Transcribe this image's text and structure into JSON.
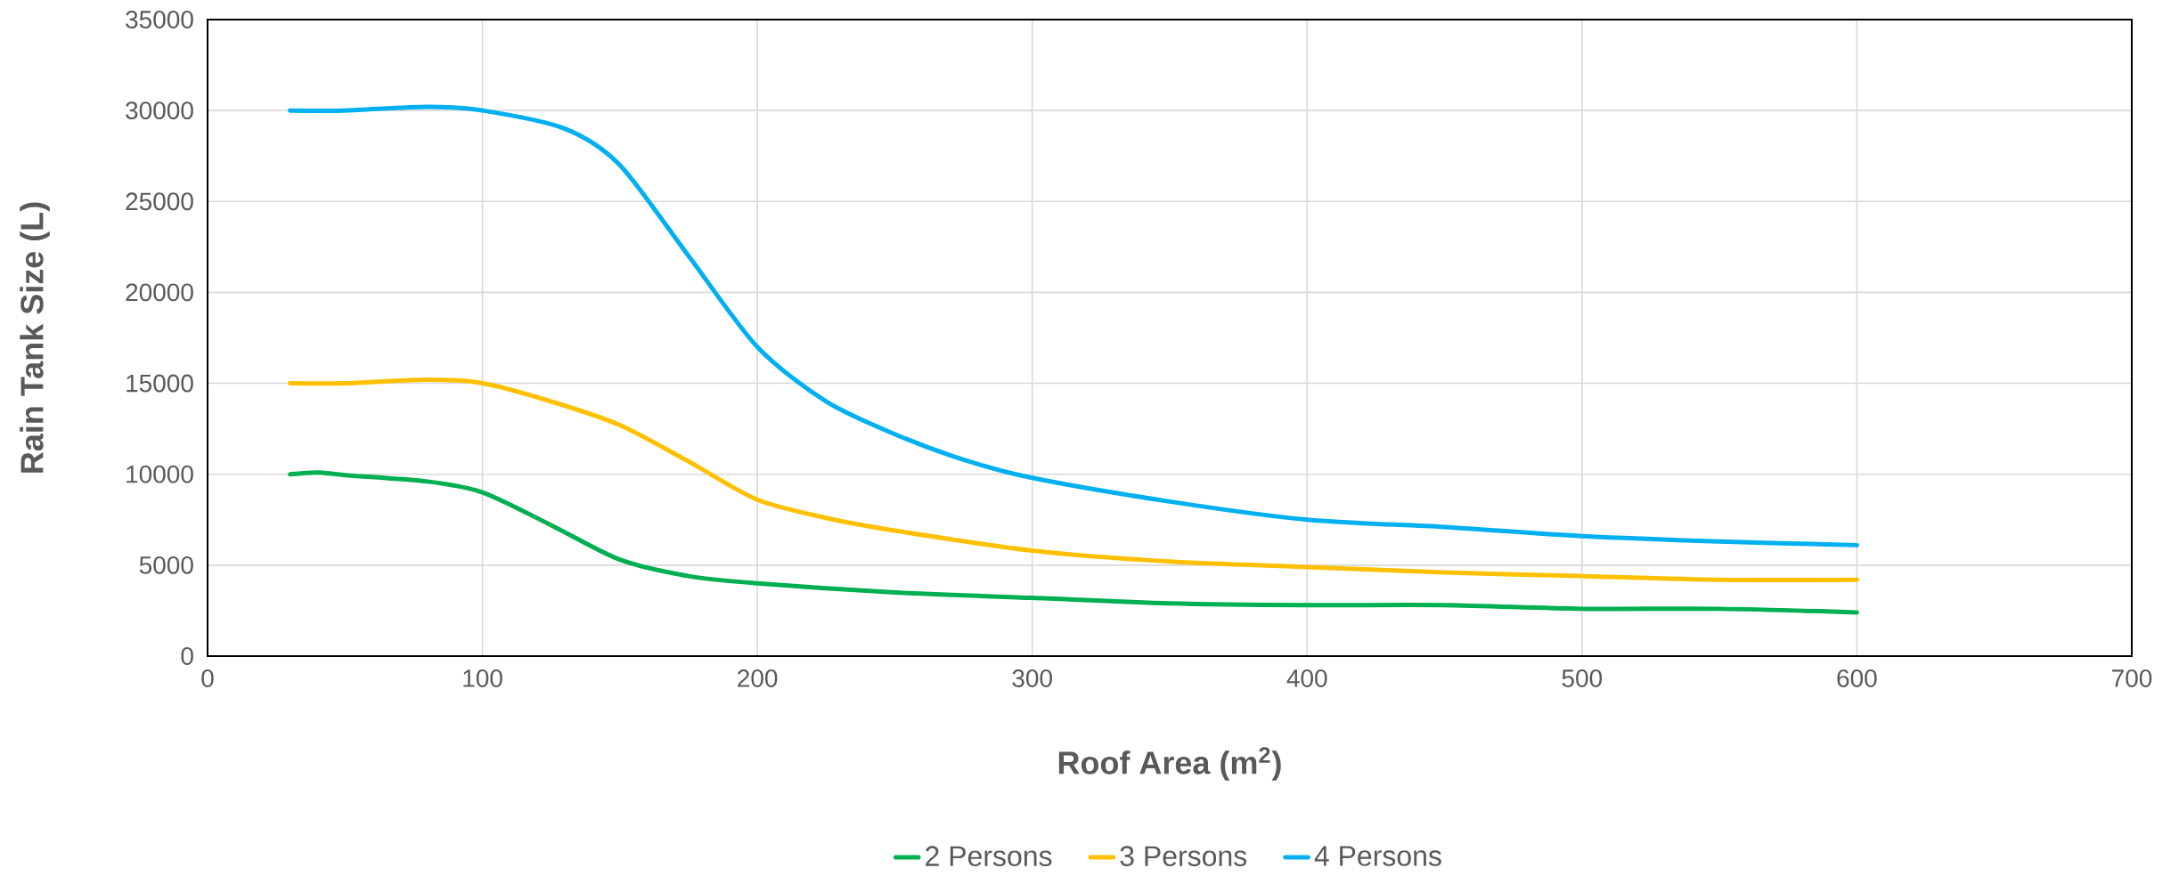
{
  "chart_data": {
    "type": "line",
    "xlabel": "Roof Area (m$^{2}$)",
    "ylabel": "Rain Tank Size (L)",
    "xlim": [
      0,
      700
    ],
    "xticks": [
      0,
      100,
      200,
      300,
      400,
      500,
      600,
      700
    ],
    "ylim": [
      0,
      35000
    ],
    "yticks": [
      0,
      5000,
      10000,
      15000,
      20000,
      25000,
      30000,
      35000
    ],
    "grid": true,
    "legend": "bottom",
    "series": [
      {
        "name": "2 Persons",
        "color": "#00b050",
        "x": [
          30,
          40,
          50,
          80,
          100,
          125,
          150,
          175,
          200,
          250,
          300,
          350,
          400,
          450,
          500,
          550,
          600
        ],
        "values": [
          10000,
          10100,
          9950,
          9600,
          9000,
          7200,
          5300,
          4400,
          4000,
          3500,
          3200,
          2900,
          2800,
          2800,
          2600,
          2600,
          2400
        ]
      },
      {
        "name": "3 Persons",
        "color": "#ffc000",
        "x": [
          30,
          50,
          80,
          100,
          125,
          150,
          175,
          200,
          225,
          250,
          300,
          350,
          400,
          450,
          500,
          550,
          600
        ],
        "values": [
          15000,
          15000,
          15200,
          15000,
          14000,
          12700,
          10700,
          8600,
          7600,
          6900,
          5800,
          5200,
          4900,
          4600,
          4400,
          4200,
          4200
        ]
      },
      {
        "name": "4 Persons",
        "color": "#00b0f0",
        "x": [
          30,
          50,
          80,
          100,
          130,
          150,
          175,
          200,
          225,
          250,
          275,
          300,
          350,
          400,
          450,
          500,
          550,
          600
        ],
        "values": [
          30000,
          30000,
          30200,
          30000,
          29000,
          27000,
          22000,
          17000,
          14000,
          12200,
          10800,
          9800,
          8500,
          7500,
          7100,
          6600,
          6300,
          6100
        ]
      }
    ]
  }
}
